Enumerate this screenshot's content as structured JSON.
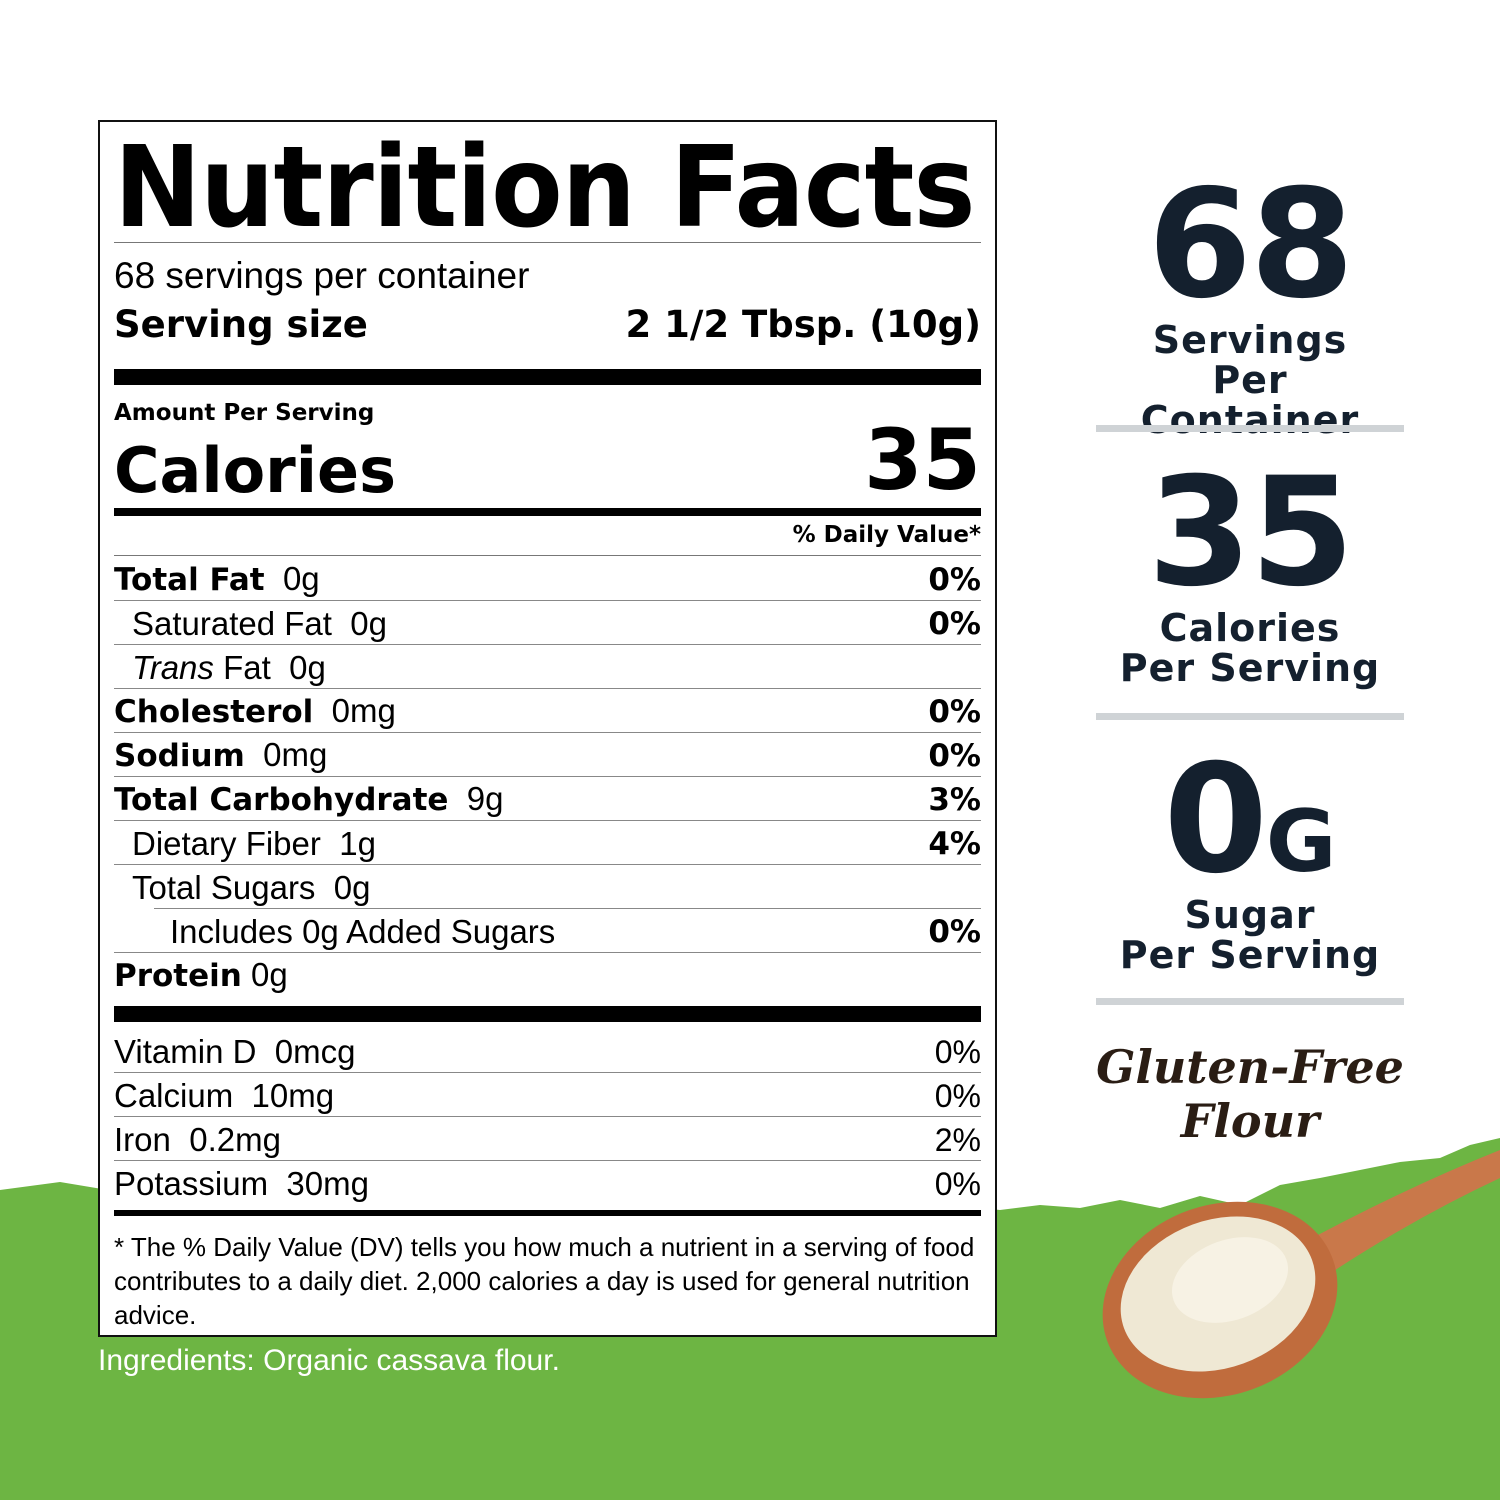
{
  "colors": {
    "green": "#6db543",
    "navy": "#14202e",
    "divider": "#cfd3d6",
    "brown": "#2a1d14"
  },
  "label": {
    "title": "Nutrition Facts",
    "servings_per_container": "68 servings per container",
    "serving_size_label": "Serving size",
    "serving_size_value": "2 1/2 Tbsp. (10g)",
    "amount_per_serving": "Amount Per Serving",
    "calories_label": "Calories",
    "calories_value": "35",
    "daily_value_header": "% Daily Value*",
    "nutrients": [
      {
        "name": "Total Fat",
        "amount": "0g",
        "dv": "0%"
      },
      {
        "name": "Saturated Fat",
        "amount": "0g",
        "dv": "0%"
      },
      {
        "name_italic": "Trans",
        "name": "Fat",
        "amount": "0g",
        "dv": ""
      },
      {
        "name": "Cholesterol",
        "amount": "0mg",
        "dv": "0%"
      },
      {
        "name": "Sodium",
        "amount": "0mg",
        "dv": "0%"
      },
      {
        "name": "Total Carbohydrate",
        "amount": "9g",
        "dv": "3%"
      },
      {
        "name": "Dietary Fiber",
        "amount": "1g",
        "dv": "4%"
      },
      {
        "name": "Total Sugars",
        "amount": "0g",
        "dv": ""
      },
      {
        "name": "Includes 0g Added Sugars",
        "amount": "",
        "dv": "0%"
      },
      {
        "name": "Protein",
        "amount": "0g",
        "dv": ""
      }
    ],
    "vitamins": [
      {
        "name": "Vitamin D",
        "amount": "0mcg",
        "dv": "0%"
      },
      {
        "name": "Calcium",
        "amount": "10mg",
        "dv": "0%"
      },
      {
        "name": "Iron",
        "amount": "0.2mg",
        "dv": "2%"
      },
      {
        "name": "Potassium",
        "amount": "30mg",
        "dv": "0%"
      }
    ],
    "footnote": "* The % Daily Value (DV) tells you how much a nutrient in a serving of food contributes to a daily diet. 2,000 calories a day is used for general nutrition advice."
  },
  "ingredients": "Ingredients: Organic cassava flour.",
  "stats": [
    {
      "value": "68",
      "unit": "",
      "line1": "Servings",
      "line2": "Per Container"
    },
    {
      "value": "35",
      "unit": "",
      "line1": "Calories",
      "line2": "Per Serving"
    },
    {
      "value": "0",
      "unit": "G",
      "line1": "Sugar",
      "line2": "Per Serving"
    }
  ],
  "badge": {
    "line1": "Gluten-Free",
    "line2": "Flour"
  }
}
